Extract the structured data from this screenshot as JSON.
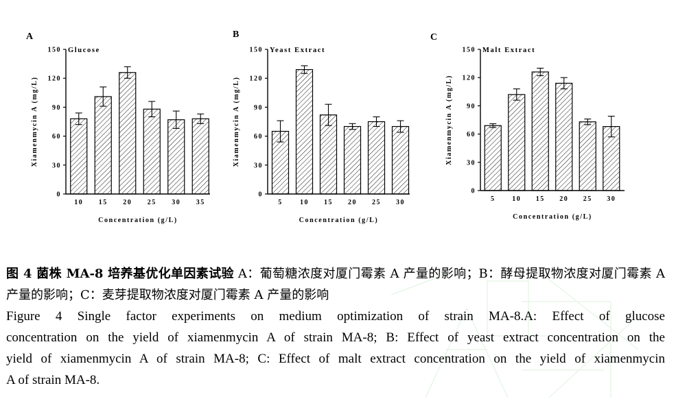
{
  "chart_data": [
    {
      "type": "bar",
      "panel": "A",
      "title": "Glucose",
      "xlabel": "Concentration (g/L)",
      "ylabel": "Xiamenmycin A (mg/L)",
      "ylim": [
        0,
        150
      ],
      "yticks": [
        0,
        30,
        60,
        90,
        120,
        150
      ],
      "categories": [
        "10",
        "15",
        "20",
        "25",
        "30",
        "35"
      ],
      "values": [
        78,
        101,
        126,
        88,
        77,
        78
      ],
      "errors": [
        6,
        10,
        6,
        8,
        9,
        5
      ]
    },
    {
      "type": "bar",
      "panel": "B",
      "title": "Yeast Extract",
      "xlabel": "Concentration (g/L)",
      "ylabel": "Xiamenmycin A (mg/L)",
      "ylim": [
        0,
        150
      ],
      "yticks": [
        0,
        30,
        60,
        90,
        120,
        150
      ],
      "categories": [
        "5",
        "10",
        "15",
        "20",
        "25",
        "30"
      ],
      "values": [
        65,
        129,
        82,
        70,
        75,
        70
      ],
      "errors": [
        11,
        4,
        11,
        3,
        5,
        6
      ]
    },
    {
      "type": "bar",
      "panel": "C",
      "title": "Malt Extract",
      "xlabel": "Concentration (g/L)",
      "ylabel": "Xiamenmycin A (mg/L)",
      "ylim": [
        0,
        150
      ],
      "yticks": [
        0,
        30,
        60,
        90,
        120,
        150
      ],
      "categories": [
        "5",
        "10",
        "15",
        "20",
        "25",
        "30"
      ],
      "values": [
        69,
        102,
        126,
        114,
        73,
        68
      ],
      "errors": [
        2,
        6,
        4,
        6,
        3,
        11
      ]
    }
  ],
  "caption": {
    "zh_label": "图 4 菌株 MA-8 培养基优化单因素试验",
    "zh_text": " A：葡萄糖浓度对厦门霉素 A 产量的影响；B：酵母提取物浓度对厦门霉素 A 产量的影响；C：麦芽提取物浓度对厦门霉素 A 产量的影响",
    "en_lines": [
      "Figure 4   Single factor experiments on medium optimization of strain MA-8.A: Effect of glucose",
      "concentration on the yield of xiamenmycin A of strain MA-8; B: Effect of yeast extract concentration on the",
      "yield of xiamenmycin A of strain MA-8; C: Effect of malt extract concentration on the yield of xiamenmycin",
      "A of strain MA-8."
    ]
  },
  "colors": {
    "ink": "#000000",
    "background": "#ffffff",
    "watermark": "#9bd89b"
  }
}
